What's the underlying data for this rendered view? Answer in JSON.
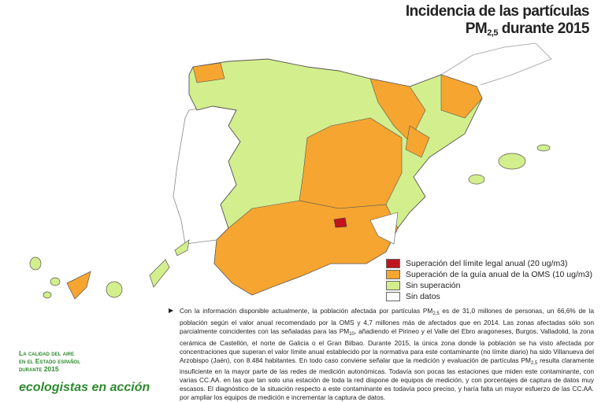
{
  "header": {
    "title_line1": "Incidencia de las partículas",
    "title_pm": "PM",
    "title_sub": "2,5",
    "title_rest": " durante 2015"
  },
  "legend": {
    "items": [
      {
        "label": "Superación del límite legal anual (20 ug/m3)",
        "color": "#c0141c"
      },
      {
        "label": "Superación de la guía anual de la OMS (10 ug/m3)",
        "color": "#f6a531"
      },
      {
        "label": "Sin superación",
        "color": "#d3ee8c"
      },
      {
        "label": "Sin datos",
        "color": "#ffffff"
      }
    ]
  },
  "paragraph": {
    "parts": [
      "Con la información disponible actualmente, la población afectada por partículas PM",
      "2,5",
      " es de 31,0 millones de personas, un 66,6% de la población según el valor anual recomendado por la OMS y 4,7 millones más de afectados que en 2014. Las zonas afectadas sólo son parcialmente coincidentes con las señaladas para las PM",
      "10",
      ", añadiendo el Pirineo y el Valle del Ebro aragoneses, Burgos, Valladolid, la zona cerámica de Castellón, el norte de Galicia o el Gran Bilbao. Durante 2015, la única zona donde la población se ha visto afectada por concentraciones que superan el valor límite anual establecido por la normativa para este contaminante (no límite diario) ha sido Villanueva del Arzobispo (Jaén), con 8.484 habitantes. En todo caso conviene señalar que la medición y evaluación de partículas PM",
      "2,5",
      " resulta claramente insuficiente en la mayor parte de las redes de medición autonómicas. Todavía son pocas las estaciones que miden este contaminante, con varias CC.AA. en las que tan solo una estación de toda la red dispone de equipos de medición, y con porcentajes de captura de datos muy escasos. El diagnóstico de la situación respecto a este contaminante es todavía poco preciso, y haría falta un mayor esfuerzo de las CC.AA. por ampliar los equipos de medición e incrementar la captura de datos."
    ]
  },
  "sidebar": {
    "lines": [
      "La calidad del aire",
      "en el Estado español",
      "durante 2015"
    ],
    "logo": "ecologistas en acción"
  }
}
